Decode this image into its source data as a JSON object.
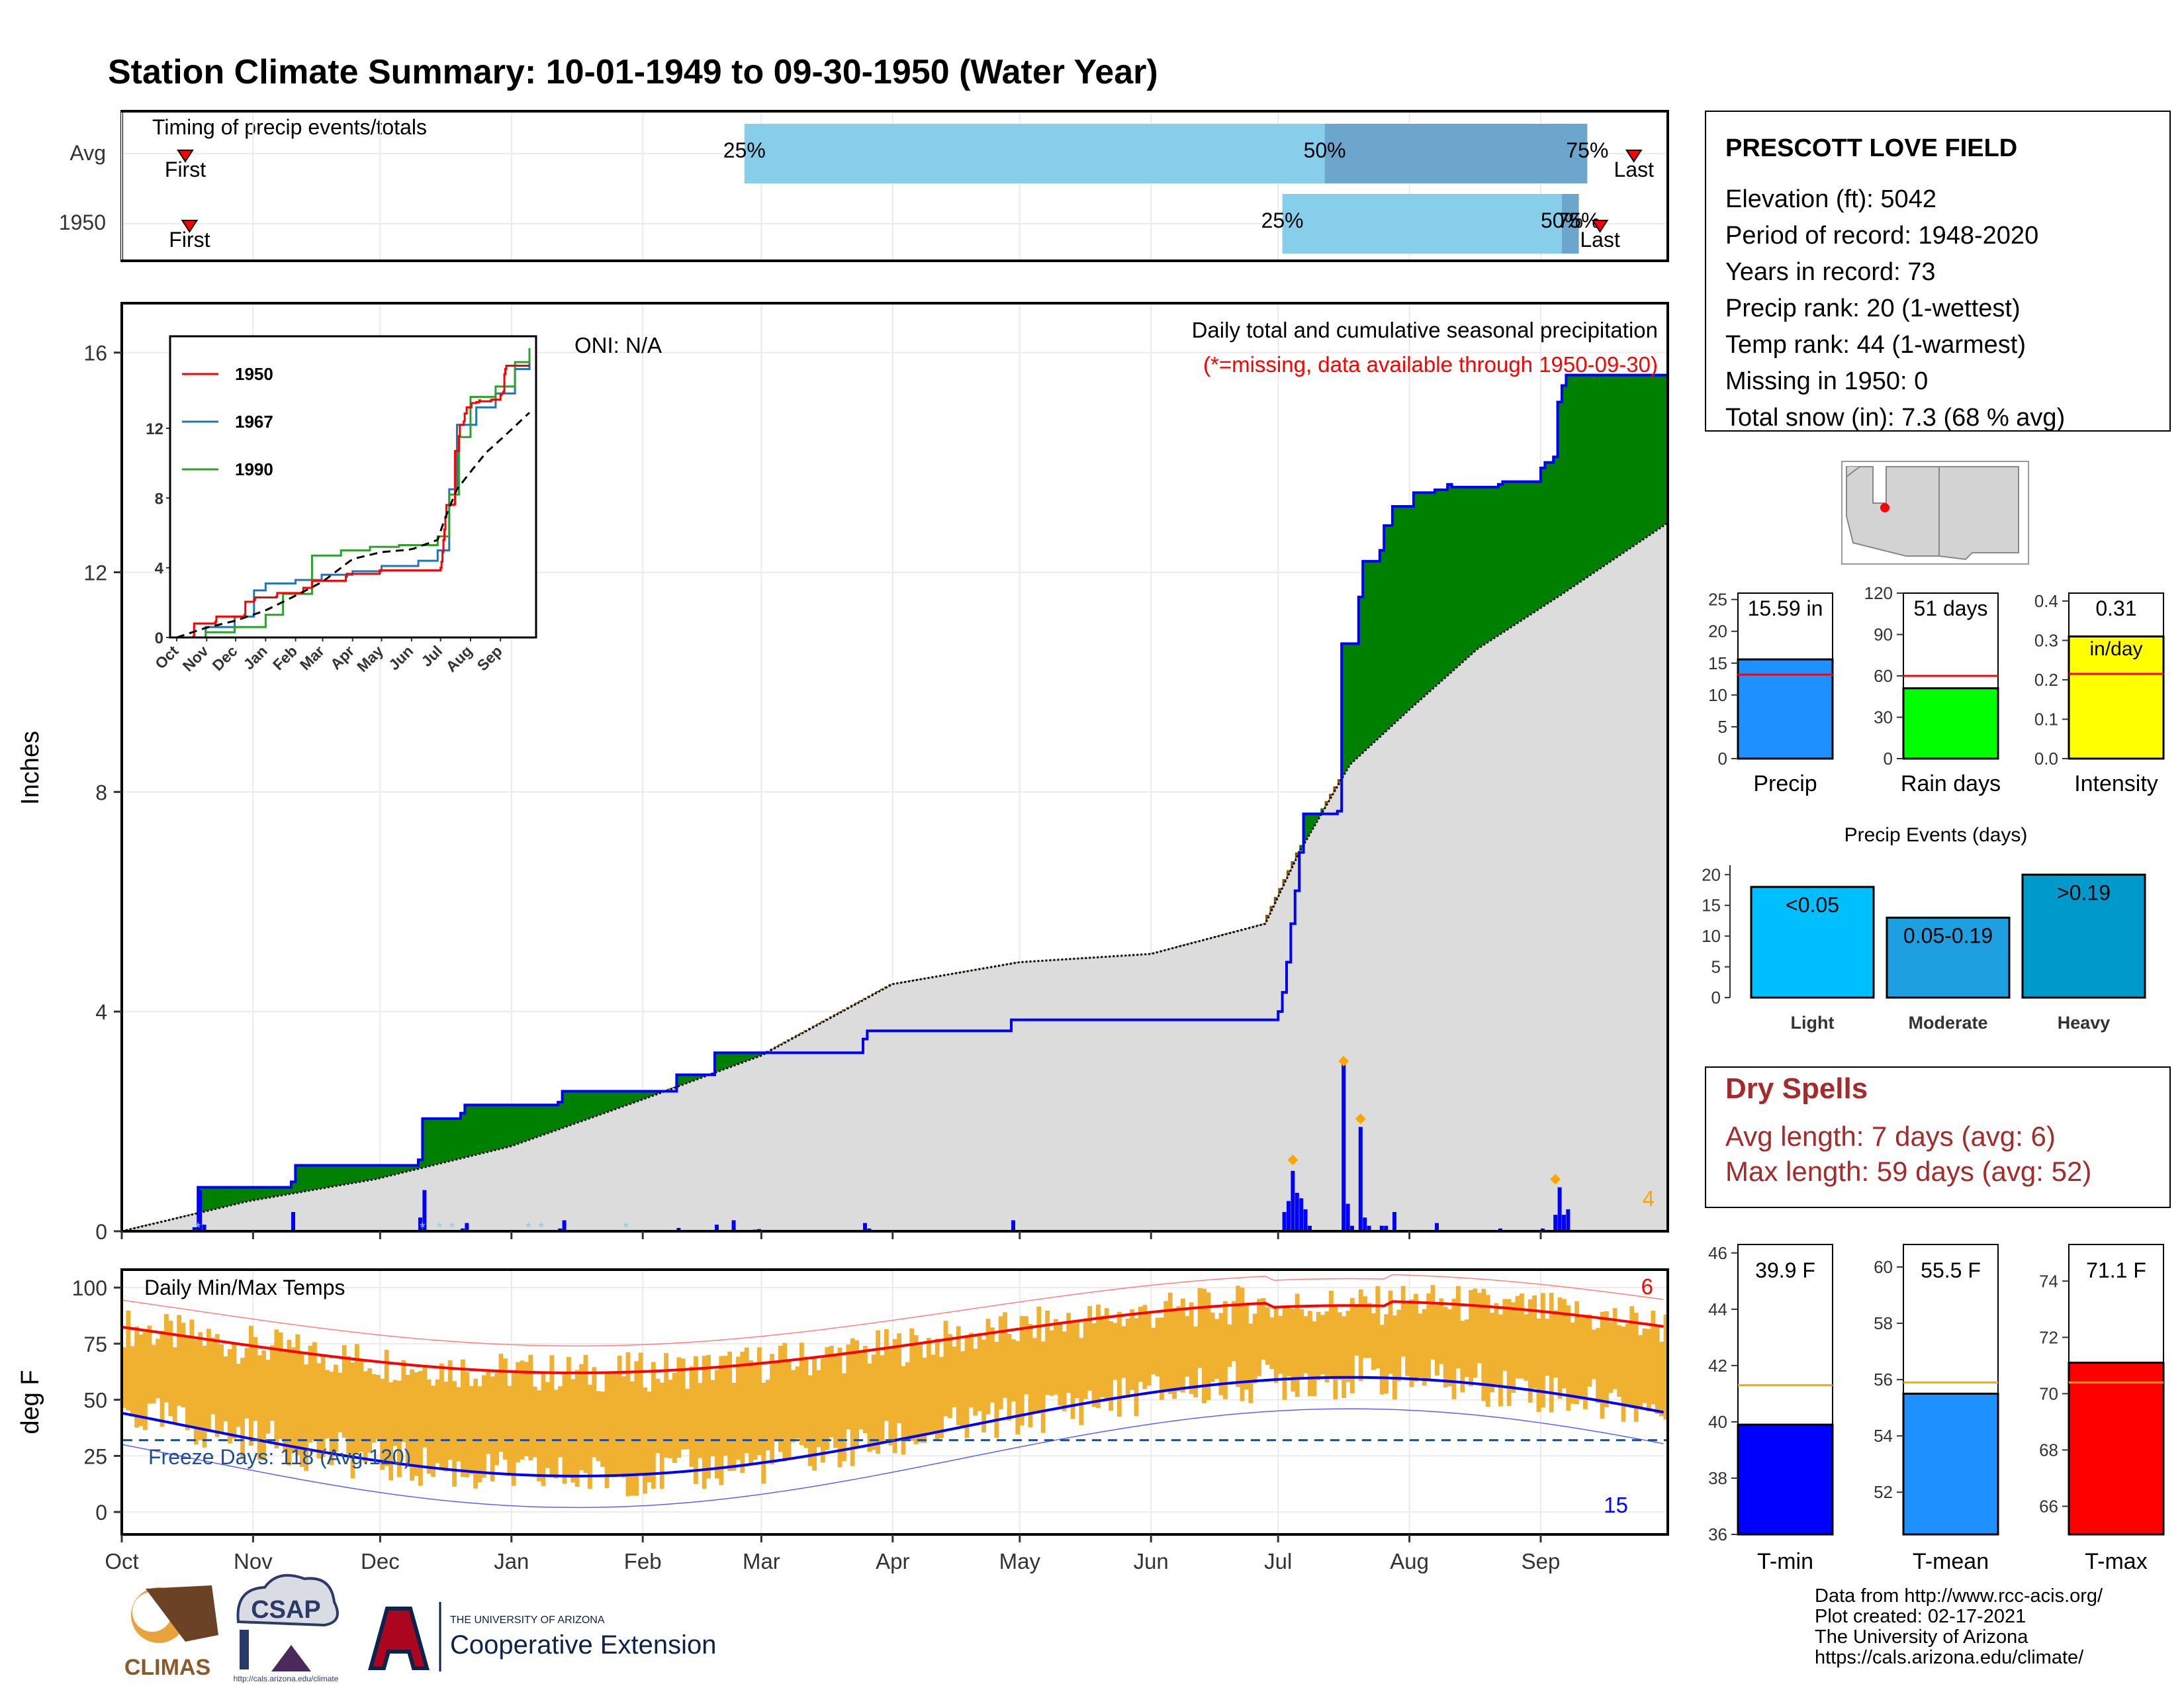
{
  "title": "Station Climate Summary: 10-01-1949 to 09-30-1950 (Water Year)",
  "colors": {
    "title": "#8B2500",
    "precip_bar": "#1E90FF",
    "days_bar": "#00FF00",
    "intensity_bar": "#FFFF00",
    "avg_line": "#FF0000",
    "tmin": "#0000FF",
    "tmean": "#1E90FF",
    "tmax": "#FF0000",
    "dry_text": "#A52A2A",
    "timing_light": "#87CEEB",
    "timing_dark": "#6CA6CD",
    "cum_deficit": "#8B5A00",
    "cum_surplus": "#008000",
    "cum_avg_fill": "#DCDCDC",
    "daily_bar": "#0000FF",
    "temp_range": "#F0B030"
  },
  "station": {
    "name": "PRESCOTT LOVE FIELD",
    "lines": [
      "Elevation (ft): 5042",
      "Period of record: 1948-2020",
      "Years in record: 73",
      "Precip rank: 20 (1-wettest)",
      "Temp rank: 44 (1-warmest)",
      "Missing in 1950: 0",
      "Total snow (in): 7.3 (68 % avg)"
    ]
  },
  "timing": {
    "label": "Timing of precip events/totals",
    "rows": [
      "Avg",
      "1950"
    ],
    "first_label": "First",
    "last_label": "Last",
    "pct_labels": [
      "25%",
      "50%",
      "75%"
    ],
    "avg": {
      "first": 15,
      "q25": 147,
      "q50": 284,
      "q75": 346,
      "last": 357
    },
    "y1950": {
      "first": 16,
      "q25": 274,
      "q50": 340,
      "q75": 344,
      "last": 349
    }
  },
  "months": [
    "Oct",
    "Nov",
    "Dec",
    "Jan",
    "Feb",
    "Mar",
    "Apr",
    "May",
    "Jun",
    "Jul",
    "Aug",
    "Sep"
  ],
  "month_starts": [
    0,
    31,
    61,
    92,
    123,
    151,
    182,
    212,
    243,
    273,
    304,
    335
  ],
  "cumulative": {
    "ylabel": "Inches",
    "yticks": [
      0,
      4,
      8,
      12,
      16
    ],
    "ylim": [
      0,
      16.9
    ],
    "oni": "ONI: N/A",
    "desc": "Daily total and cumulative seasonal precipitation",
    "missing_note": "(*=missing, data available through 1950-09-30)",
    "count_label": "4",
    "avg_points": [
      [
        0,
        0
      ],
      [
        30,
        0.55
      ],
      [
        60,
        0.95
      ],
      [
        92,
        1.55
      ],
      [
        123,
        2.4
      ],
      [
        151,
        3.2
      ],
      [
        182,
        4.5
      ],
      [
        212,
        4.9
      ],
      [
        243,
        5.05
      ],
      [
        270,
        5.6
      ],
      [
        278,
        6.9
      ],
      [
        290,
        8.5
      ],
      [
        304,
        9.5
      ],
      [
        320,
        10.6
      ],
      [
        340,
        11.6
      ],
      [
        365,
        12.9
      ]
    ],
    "y1950_steps": [
      [
        0,
        0
      ],
      [
        17,
        0.05
      ],
      [
        18,
        0.8
      ],
      [
        40,
        0.9
      ],
      [
        41,
        1.2
      ],
      [
        70,
        1.3
      ],
      [
        71,
        2.05
      ],
      [
        80,
        2.15
      ],
      [
        81,
        2.3
      ],
      [
        103,
        2.35
      ],
      [
        104,
        2.55
      ],
      [
        131,
        2.85
      ],
      [
        140,
        3.25
      ],
      [
        175,
        3.5
      ],
      [
        176,
        3.65
      ],
      [
        210,
        3.85
      ],
      [
        273,
        4.0
      ],
      [
        274,
        4.35
      ],
      [
        275,
        4.9
      ],
      [
        276,
        5.6
      ],
      [
        277,
        6.2
      ],
      [
        278,
        6.9
      ],
      [
        279,
        7.6
      ],
      [
        287,
        7.65
      ],
      [
        288,
        10.7
      ],
      [
        292,
        11.55
      ],
      [
        293,
        12.2
      ],
      [
        297,
        12.4
      ],
      [
        298,
        12.85
      ],
      [
        300,
        13.2
      ],
      [
        305,
        13.45
      ],
      [
        310,
        13.5
      ],
      [
        313,
        13.6
      ],
      [
        314,
        13.55
      ],
      [
        325,
        13.6
      ],
      [
        326,
        13.65
      ],
      [
        335,
        13.9
      ],
      [
        336,
        14.0
      ],
      [
        338,
        14.1
      ],
      [
        339,
        15.1
      ],
      [
        340,
        15.4
      ],
      [
        341,
        15.59
      ],
      [
        365,
        15.59
      ]
    ],
    "daily_bars": [
      [
        18,
        0.75
      ],
      [
        19,
        0.12
      ],
      [
        40,
        0.35
      ],
      [
        70,
        0.25
      ],
      [
        71,
        0.75
      ],
      [
        80,
        0.05
      ],
      [
        81,
        0.15
      ],
      [
        103,
        0.05
      ],
      [
        104,
        0.2
      ],
      [
        131,
        0.06
      ],
      [
        140,
        0.12
      ],
      [
        144,
        0.2
      ],
      [
        149,
        0.03
      ],
      [
        150,
        0.04
      ],
      [
        175,
        0.15
      ],
      [
        176,
        0.05
      ],
      [
        210,
        0.2
      ],
      [
        274,
        0.35
      ],
      [
        275,
        0.55
      ],
      [
        276,
        1.1
      ],
      [
        277,
        0.7
      ],
      [
        278,
        0.6
      ],
      [
        279,
        0.4
      ],
      [
        280,
        0.1
      ],
      [
        288,
        3.05
      ],
      [
        289,
        0.5
      ],
      [
        290,
        0.1
      ],
      [
        292,
        1.9
      ],
      [
        293,
        0.25
      ],
      [
        294,
        0.1
      ],
      [
        297,
        0.1
      ],
      [
        298,
        0.1
      ],
      [
        300,
        0.35
      ],
      [
        310,
        0.15
      ],
      [
        325,
        0.05
      ],
      [
        335,
        0.05
      ],
      [
        338,
        0.3
      ],
      [
        339,
        0.8
      ],
      [
        340,
        0.3
      ],
      [
        341,
        0.4
      ]
    ],
    "asterisks": [
      18,
      71,
      75,
      78,
      96,
      99,
      119
    ],
    "peaks": [
      [
        276,
        1.25
      ],
      [
        288,
        3.05
      ],
      [
        292,
        2.0
      ],
      [
        338,
        0.9
      ]
    ]
  },
  "inset": {
    "legend": [
      "1950",
      "1967",
      "1990"
    ],
    "legend_colors": [
      "#FF0000",
      "#1F77B4",
      "#2CA02C"
    ],
    "yticks": [
      0,
      4,
      8,
      12
    ],
    "months": [
      "Oct",
      "Nov",
      "Dec",
      "Jan",
      "Feb",
      "Mar",
      "Apr",
      "May",
      "Jun",
      "Jul",
      "Aug",
      "Sep"
    ],
    "y1967": [
      [
        0,
        0
      ],
      [
        30,
        0.6
      ],
      [
        60,
        1.2
      ],
      [
        80,
        2.7
      ],
      [
        92,
        3.1
      ],
      [
        123,
        3.3
      ],
      [
        150,
        3.6
      ],
      [
        182,
        3.8
      ],
      [
        212,
        4.1
      ],
      [
        250,
        4.4
      ],
      [
        270,
        5.0
      ],
      [
        282,
        8.5
      ],
      [
        290,
        12.2
      ],
      [
        310,
        13.2
      ],
      [
        330,
        14.0
      ],
      [
        350,
        15.4
      ],
      [
        365,
        16.1
      ]
    ],
    "y1990": [
      [
        0,
        0
      ],
      [
        30,
        0.3
      ],
      [
        60,
        0.6
      ],
      [
        92,
        1.3
      ],
      [
        110,
        2.5
      ],
      [
        140,
        4.7
      ],
      [
        170,
        5.0
      ],
      [
        200,
        5.2
      ],
      [
        230,
        5.3
      ],
      [
        270,
        5.8
      ],
      [
        282,
        8.2
      ],
      [
        292,
        11.5
      ],
      [
        304,
        13.8
      ],
      [
        330,
        14.4
      ],
      [
        350,
        15.8
      ],
      [
        365,
        16.6
      ]
    ]
  },
  "temps": {
    "label": "Daily Min/Max Temps",
    "ylabel": "deg F",
    "yticks": [
      0,
      25,
      50,
      75,
      100
    ],
    "ylim": [
      -10,
      108
    ],
    "freeze_label": "Freeze Days: 118 (Avg.120)",
    "freeze_line": 32,
    "top_count": "6",
    "bottom_count": "15"
  },
  "gauges": {
    "precip": {
      "label": "Precip",
      "value": 15.59,
      "avg": 13.2,
      "text": "15.59 in",
      "yticks": [
        0,
        5,
        10,
        15,
        20,
        25
      ],
      "max": 26
    },
    "days": {
      "label": "Rain days",
      "value": 51,
      "avg": 60,
      "text": "51 days",
      "yticks": [
        0,
        30,
        60,
        90,
        120
      ],
      "max": 120
    },
    "intensity": {
      "label": "Intensity",
      "value": 0.31,
      "avg": 0.215,
      "text": "0.31",
      "text2": "in/day",
      "yticks": [
        "0.0",
        "0.1",
        "0.2",
        "0.3",
        "0.4"
      ],
      "max": 0.42
    }
  },
  "events": {
    "title": "Precip Events (days)",
    "categories": [
      "Light",
      "Moderate",
      "Heavy"
    ],
    "values": [
      18,
      13,
      20
    ],
    "labels": [
      "<0.05",
      "0.05-0.19",
      ">0.19"
    ],
    "colors": [
      "#00BFFF",
      "#1E9FE0",
      "#0099CC"
    ],
    "yticks": [
      0,
      5,
      10,
      15,
      20
    ]
  },
  "dry": {
    "title": "Dry Spells",
    "avg": "Avg length: 7 days (avg: 6)",
    "max": "Max length: 59 days (avg: 52)"
  },
  "temp_gauges": [
    {
      "label": "T-min",
      "value": 39.9,
      "avg": 41.3,
      "text": "39.9 F",
      "yticks": [
        36,
        38,
        40,
        42,
        44,
        46
      ],
      "min": 36,
      "max": 46.3
    },
    {
      "label": "T-mean",
      "value": 55.5,
      "avg": 55.9,
      "text": "55.5 F",
      "yticks": [
        52,
        54,
        56,
        58,
        60
      ],
      "min": 50.5,
      "max": 60.8
    },
    {
      "label": "T-max",
      "value": 71.1,
      "avg": 70.4,
      "text": "71.1 F",
      "yticks": [
        66,
        68,
        70,
        72,
        74
      ],
      "min": 65,
      "max": 75.3
    }
  ],
  "footer": {
    "lines": [
      "Data from http://www.rcc-acis.org/",
      "Plot created: 02-17-2021",
      "The University of Arizona",
      "https://cals.arizona.edu/climate/"
    ],
    "climas": "CLIMAS",
    "csap": "CSAP",
    "csap_url": "http://cals.arizona.edu/climate",
    "ua_small": "THE UNIVERSITY OF ARIZONA",
    "ua_big": "Cooperative Extension"
  }
}
